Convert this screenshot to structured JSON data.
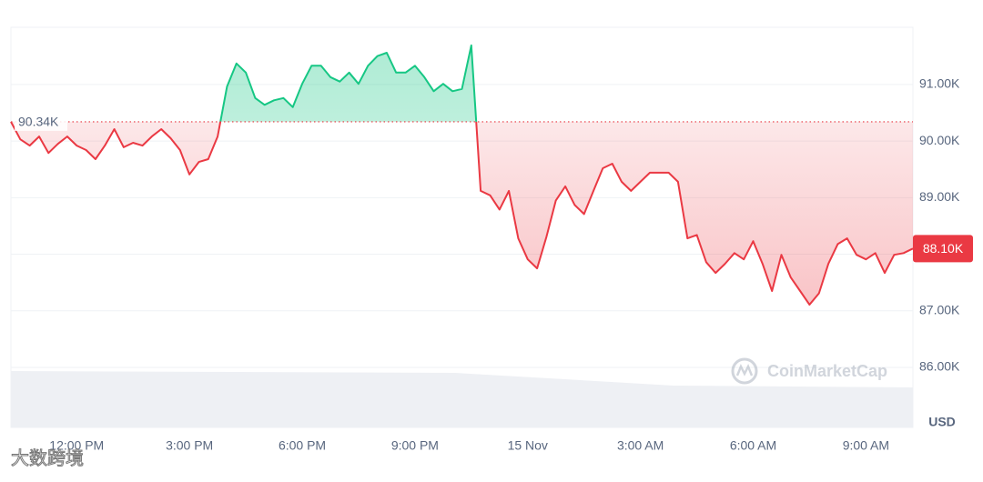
{
  "chart_data": {
    "type": "line",
    "x": [
      10.25,
      10.5,
      10.75,
      11,
      11.25,
      11.5,
      11.75,
      12,
      12.25,
      12.5,
      12.75,
      13,
      13.25,
      13.5,
      13.75,
      14,
      14.25,
      14.5,
      14.75,
      15,
      15.25,
      15.5,
      15.75,
      16,
      16.25,
      16.5,
      16.75,
      17,
      17.25,
      17.5,
      17.75,
      18,
      18.25,
      18.5,
      18.75,
      19,
      19.25,
      19.5,
      19.75,
      20,
      20.25,
      20.5,
      20.75,
      21,
      21.25,
      21.5,
      21.75,
      22,
      22.25,
      22.5,
      22.75,
      23,
      23.25,
      23.5,
      23.75,
      24,
      24.25,
      24.5,
      24.75,
      25,
      25.25,
      25.5,
      25.75,
      26,
      26.25,
      26.5,
      26.75,
      27,
      27.25,
      27.5,
      27.75,
      28,
      28.25,
      28.5,
      28.75,
      29,
      29.25,
      29.5,
      29.75,
      30,
      30.25,
      30.5,
      30.75,
      31,
      31.25,
      31.5,
      31.75,
      32,
      32.25,
      32.5,
      32.75,
      33,
      33.25,
      33.5,
      33.75,
      34,
      34.25
    ],
    "series": [
      {
        "values": [
          90340,
          90030,
          89920,
          90080,
          89790,
          89950,
          90080,
          89920,
          89840,
          89680,
          89920,
          90210,
          89890,
          89970,
          89920,
          90080,
          90210,
          90050,
          89840,
          89410,
          89630,
          89680,
          90080,
          90960,
          91370,
          91210,
          90760,
          90640,
          90720,
          90760,
          90600,
          91010,
          91330,
          91330,
          91130,
          91050,
          91210,
          91010,
          91330,
          91500,
          91560,
          91210,
          91210,
          91330,
          91130,
          90880,
          91010,
          90880,
          90920,
          91690,
          89120,
          89040,
          88790,
          89120,
          88280,
          87910,
          87750,
          88310,
          88950,
          89200,
          88870,
          88710,
          89120,
          89520,
          89600,
          89280,
          89120,
          89280,
          89440,
          89440,
          89440,
          89280,
          88280,
          88340,
          87860,
          87670,
          87830,
          88020,
          87910,
          88230,
          87830,
          87350,
          87990,
          87590,
          87350,
          87110,
          87310,
          87830,
          88180,
          88280,
          87990,
          87910,
          88020,
          87670,
          87990,
          88020,
          88100
        ]
      }
    ],
    "up_color": "#16c784",
    "down_color": "#ea3943",
    "baseline": {
      "value": 90340,
      "label": "90.34K"
    },
    "current_price": {
      "value": 88100,
      "label": "88.10K"
    },
    "xlim": [
      10.25,
      34.25
    ],
    "xticks": [
      {
        "value": 12,
        "label": "12:00 PM"
      },
      {
        "value": 15,
        "label": "3:00 PM"
      },
      {
        "value": 18,
        "label": "6:00 PM"
      },
      {
        "value": 21,
        "label": "9:00 PM"
      },
      {
        "value": 24,
        "label": "15 Nov"
      },
      {
        "value": 27,
        "label": "3:00 AM"
      },
      {
        "value": 30,
        "label": "6:00 AM"
      },
      {
        "value": 33,
        "label": "9:00 AM"
      }
    ],
    "ylim": [
      84940,
      92010
    ],
    "yticks": [
      {
        "value": 86000,
        "label": "86.00K"
      },
      {
        "value": 87000,
        "label": "87.00K"
      },
      {
        "value": 88000,
        "label": "88.00K"
      },
      {
        "value": 89000,
        "label": "89.00K"
      },
      {
        "value": 90000,
        "label": "90.00K"
      },
      {
        "value": 91000,
        "label": "91.00K"
      }
    ],
    "y_axis_label": "USD",
    "grid": true,
    "watermark": "CoinMarketCap",
    "corner_watermark": "大数跨境"
  }
}
